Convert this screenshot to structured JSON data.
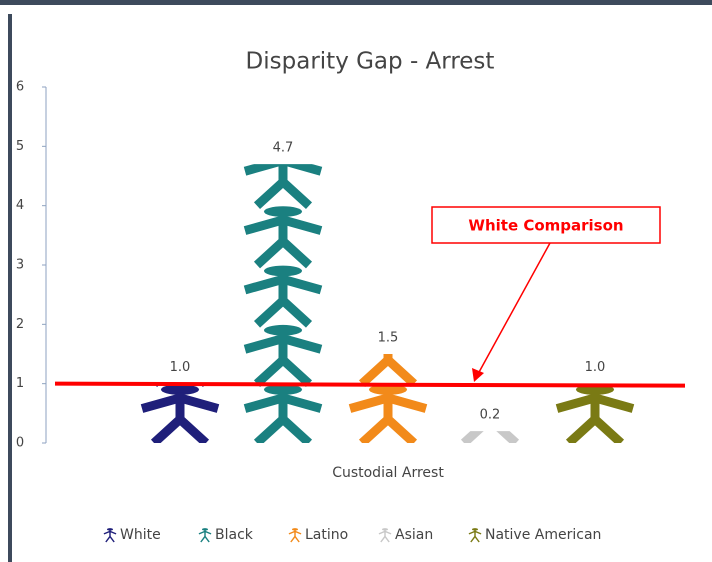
{
  "chart_data": {
    "type": "pictograph",
    "title": "Disparity Gap - Arrest",
    "categories": [
      "Custodial Arrest"
    ],
    "series": [
      {
        "name": "White",
        "color": "#1f1f7a",
        "values": [
          1.0
        ],
        "value_labels": [
          "1.0"
        ]
      },
      {
        "name": "Black",
        "color": "#1a8080",
        "values": [
          4.7
        ],
        "value_labels": [
          "4.7"
        ]
      },
      {
        "name": "Latino",
        "color": "#f28a1a",
        "values": [
          1.5
        ],
        "value_labels": [
          "1.5"
        ]
      },
      {
        "name": "Asian",
        "color": "#c8c8c8",
        "values": [
          0.2
        ],
        "value_labels": [
          "0.2"
        ]
      },
      {
        "name": "Native American",
        "color": "#7a7a14",
        "values": [
          1.0
        ],
        "value_labels": [
          "1.0"
        ]
      }
    ],
    "ylim": [
      0,
      6
    ],
    "yticks": [
      0,
      1,
      2,
      3,
      4,
      5,
      6
    ],
    "reference_line": {
      "value": 1,
      "label": "White Comparison",
      "color": "#ff0000"
    },
    "legend": "bottom"
  }
}
